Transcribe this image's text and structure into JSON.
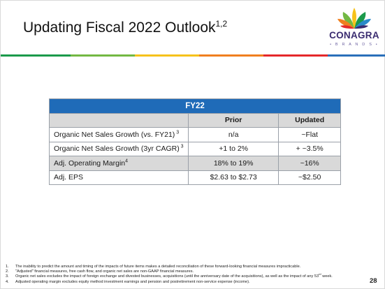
{
  "slide": {
    "title": "Updating Fiscal 2022 Outlook",
    "title_superscript": "1,2",
    "page_number": "28"
  },
  "logo": {
    "word": "CONAGRA",
    "sub": "• B R A N D S •",
    "colors": [
      "#e5282a",
      "#f07f1f",
      "#f6c21b",
      "#73b843",
      "#1b9a4b",
      "#2a8ac9",
      "#3a2c70"
    ]
  },
  "stripe_colors": [
    "#1b9a4b",
    "#73b843",
    "#f6c21b",
    "#f07f1f",
    "#e5282a",
    "#2a6fba"
  ],
  "table": {
    "header": "FY22",
    "col_prior": "Prior",
    "col_updated": "Updated",
    "rows": [
      {
        "label": "Organic Net Sales Growth (vs. FY21)",
        "sup": " 3",
        "prior": "n/a",
        "updated": "~Flat"
      },
      {
        "label": "Organic Net Sales Growth (3yr CAGR)",
        "sup": " 3",
        "prior": "+1 to 2%",
        "updated": "+ ~3.5%"
      },
      {
        "label": "Adj.  Operating Margin",
        "sup": "4",
        "prior": "18% to 19%",
        "updated": "~16%"
      },
      {
        "label": "Adj. EPS",
        "sup": "",
        "prior": "$2.63 to $2.73",
        "updated": "~$2.50"
      }
    ]
  },
  "footnotes": [
    {
      "num": "1.",
      "text": "The inability to predict the amount and timing of the impacts of future items makes a detailed reconciliation of these forward-looking financial measures impracticable."
    },
    {
      "num": "2.",
      "text": "\"Adjusted\" financial measures, free cash flow, and organic net sales are non-GAAP financial measures."
    },
    {
      "num": "3.",
      "text": "Organic net sales excludes the impact of foreign exchange and divested businesses, acquisitions (until the anniversary date of the acquisitions), as well as the impact of any 53",
      "sup": "rd",
      "tail": " week."
    },
    {
      "num": "4.",
      "text": "Adjusted operating margin excludes equity method investment earnings and pension and postretirement non-service expense (income)."
    }
  ]
}
